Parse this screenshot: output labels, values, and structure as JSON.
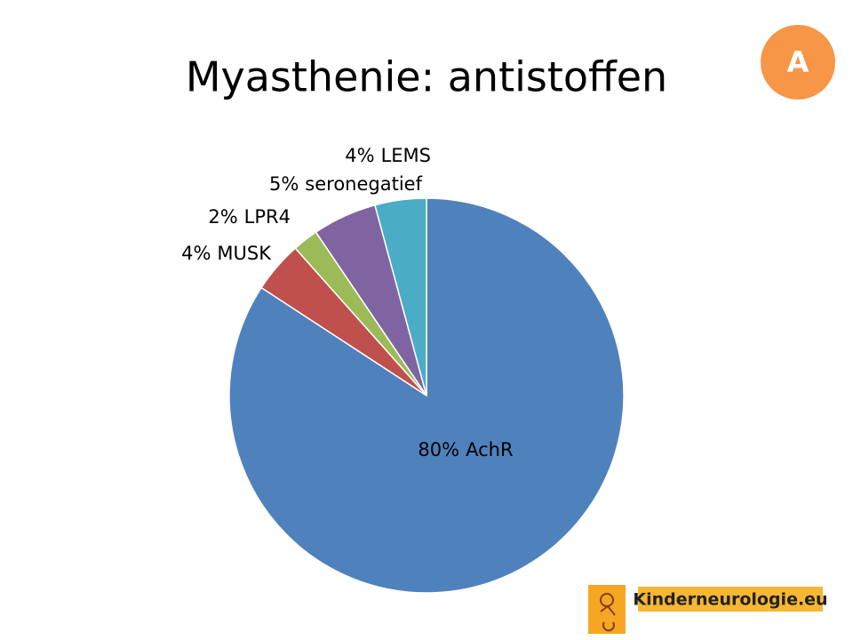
{
  "chart_data": {
    "type": "pie",
    "title": "Myasthenie: antistoffen",
    "categories": [
      "AchR",
      "MUSK",
      "LPR4",
      "seronegatief",
      "LEMS"
    ],
    "values": [
      80,
      4,
      2,
      5,
      4
    ],
    "value_labels": [
      "80%",
      "4%",
      "2%",
      "5%",
      "4%"
    ],
    "colors": [
      "#4f81bd",
      "#c0504d",
      "#9bbb59",
      "#8064a2",
      "#4bacc6"
    ]
  },
  "badge": "A",
  "logo": "Kinderneurologie.eu"
}
